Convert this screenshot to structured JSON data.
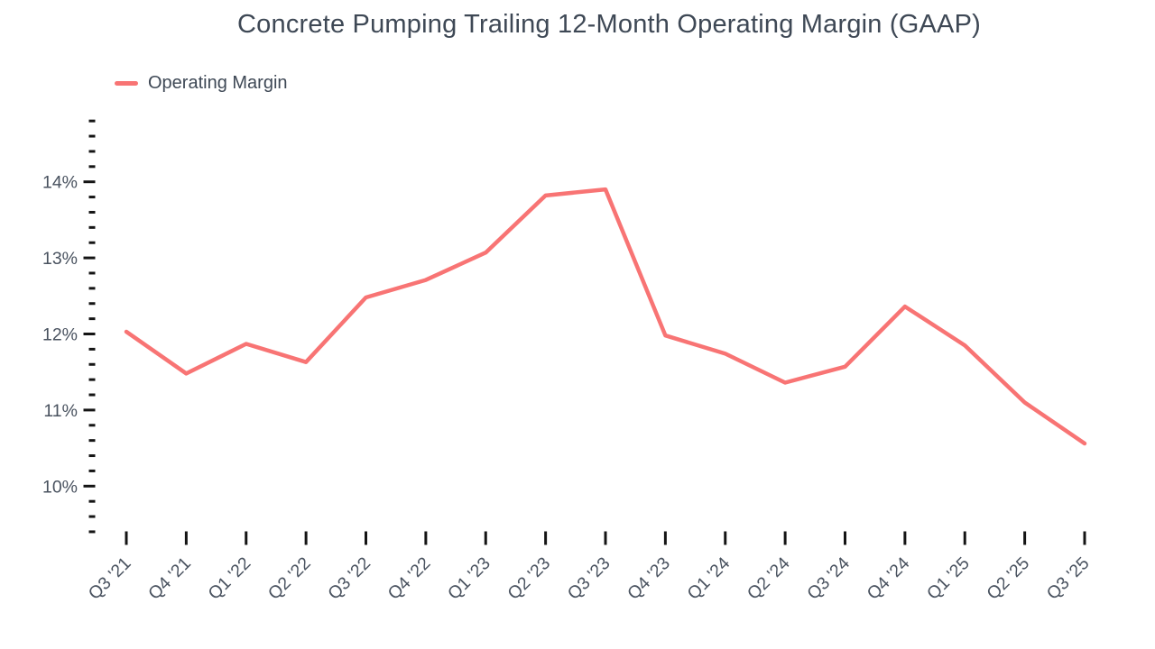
{
  "title": "Concrete Pumping Trailing 12-Month Operating Margin (GAAP)",
  "legend": {
    "label": "Operating Margin",
    "swatch_color": "#f87474"
  },
  "colors": {
    "line": "#f87474",
    "title_text": "#3e4855",
    "axis_label_text": "#49525f",
    "tick_mark": "#141414",
    "background": "#ffffff"
  },
  "chart_data": {
    "type": "line",
    "title": "Concrete Pumping Trailing 12-Month Operating Margin (GAAP)",
    "xlabel": "",
    "ylabel": "",
    "categories": [
      "Q3 '21",
      "Q4 '21",
      "Q1 '22",
      "Q2 '22",
      "Q3 '22",
      "Q4 '22",
      "Q1 '23",
      "Q2 '23",
      "Q3 '23",
      "Q4 '23",
      "Q1 '24",
      "Q2 '24",
      "Q3 '24",
      "Q4 '24",
      "Q1 '25",
      "Q2 '25",
      "Q3 '25"
    ],
    "series": [
      {
        "name": "Operating Margin",
        "unit": "%",
        "color": "#f87474",
        "values": [
          12.03,
          11.48,
          11.87,
          11.63,
          12.48,
          12.71,
          13.07,
          13.82,
          13.9,
          11.98,
          11.74,
          11.36,
          11.57,
          12.36,
          11.85,
          11.1,
          10.56
        ]
      }
    ],
    "y_axis": {
      "unit": "%",
      "tick_min": 9.4,
      "tick_max": 14.8,
      "minor_step": 0.2,
      "major_step": 1,
      "major_tick_labels": [
        "10%",
        "11%",
        "12%",
        "13%",
        "14%"
      ],
      "major_tick_values": [
        10,
        11,
        12,
        13,
        14
      ]
    },
    "x_axis": {
      "label_rotation_deg": -45
    },
    "grid": false,
    "axis_lines": false,
    "legend_position": "top-left"
  }
}
